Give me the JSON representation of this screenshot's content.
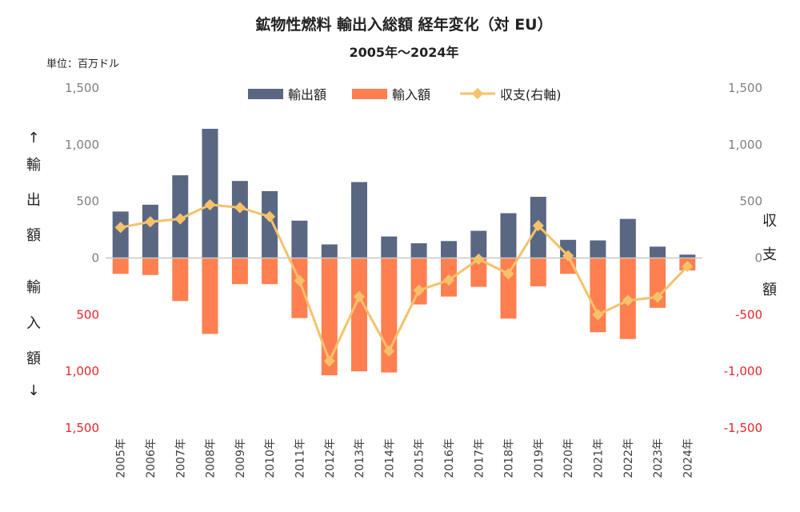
{
  "chart_data": {
    "type": "bar",
    "title": "鉱物性燃料 輸出入総額 経年変化（対 EU）",
    "subtitle": "2005年～2024年",
    "unit_label": "単位：百万ドル",
    "left_axis_label": [
      "↑",
      "輸",
      "出",
      "額",
      "輸",
      "入",
      "額",
      "↓"
    ],
    "right_axis_label": [
      "収",
      "支",
      "額"
    ],
    "left_ticks": [
      {
        "label": "1,500",
        "value": 1500,
        "color": "gray"
      },
      {
        "label": "1,000",
        "value": 1000,
        "color": "gray"
      },
      {
        "label": "500",
        "value": 500,
        "color": "gray"
      },
      {
        "label": "0",
        "value": 0,
        "color": "gray"
      },
      {
        "label": "500",
        "value": -500,
        "color": "red"
      },
      {
        "label": "1,000",
        "value": -1000,
        "color": "red"
      },
      {
        "label": "1,500",
        "value": -1500,
        "color": "red"
      }
    ],
    "right_ticks": [
      {
        "label": "1,500",
        "value": 1500,
        "color": "gray"
      },
      {
        "label": "1,000",
        "value": 1000,
        "color": "gray"
      },
      {
        "label": "500",
        "value": 500,
        "color": "gray"
      },
      {
        "label": "0",
        "value": 0,
        "color": "gray"
      },
      {
        "label": "-500",
        "value": -500,
        "color": "red"
      },
      {
        "label": "-1,000",
        "value": -1000,
        "color": "red"
      },
      {
        "label": "-1,500",
        "value": -1500,
        "color": "red"
      }
    ],
    "ylim": [
      -1500,
      1500
    ],
    "categories": [
      "2005年",
      "2006年",
      "2007年",
      "2008年",
      "2009年",
      "2010年",
      "2011年",
      "2012年",
      "2013年",
      "2014年",
      "2015年",
      "2016年",
      "2017年",
      "2018年",
      "2019年",
      "2020年",
      "2021年",
      "2022年",
      "2023年",
      "2024年"
    ],
    "series": [
      {
        "name": "輸出額",
        "type": "bar",
        "color": "#5a6782",
        "values": [
          410,
          470,
          730,
          1140,
          680,
          590,
          330,
          120,
          670,
          190,
          130,
          150,
          240,
          395,
          540,
          160,
          155,
          345,
          100,
          30
        ]
      },
      {
        "name": "輸入額",
        "type": "bar",
        "color": "#ff7f50",
        "values": [
          -140,
          -150,
          -380,
          -670,
          -230,
          -230,
          -530,
          -1035,
          -1000,
          -1010,
          -410,
          -340,
          -255,
          -535,
          -250,
          -140,
          -655,
          -715,
          -440,
          -110
        ]
      },
      {
        "name": "収支(右軸)",
        "type": "line",
        "color": "#f5c26b",
        "values": [
          270,
          320,
          345,
          470,
          445,
          365,
          -200,
          -910,
          -340,
          -820,
          -285,
          -195,
          -10,
          -140,
          285,
          20,
          -500,
          -375,
          -345,
          -75
        ]
      }
    ],
    "colors": {
      "zero_line": "#c8c8c8",
      "left_negative_ticks": "#e4262c",
      "right_negative_ticks": "#e4262c",
      "positive_ticks": "#7f7f7f",
      "marker": "#f5c26b"
    },
    "legend_position": "top"
  }
}
